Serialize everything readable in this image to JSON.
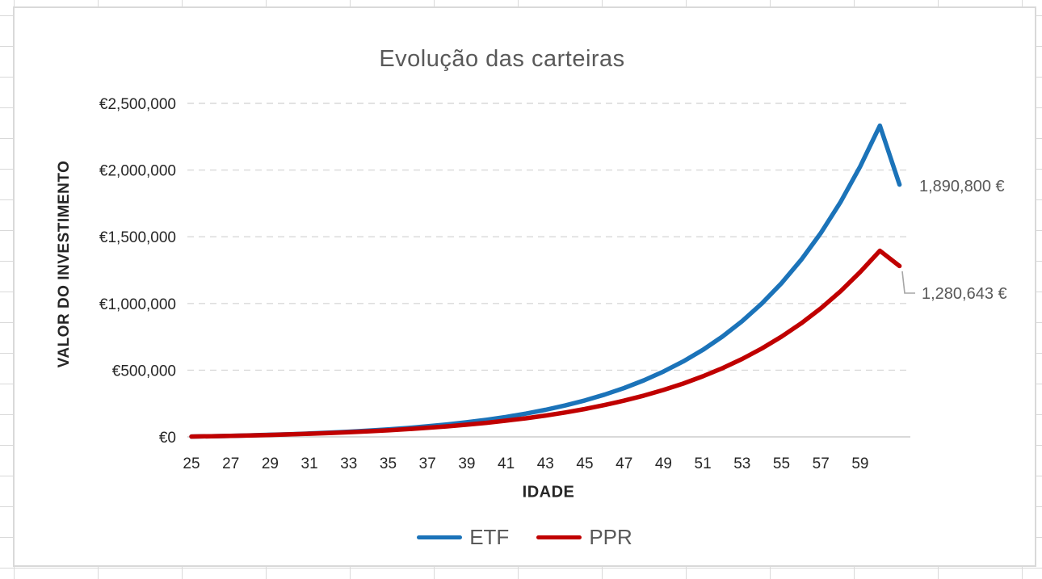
{
  "colors": {
    "etf": "#1B73B9",
    "ppr": "#C00000",
    "title_text": "#595959",
    "tick_text": "#262626",
    "gridline": "#D9D9D9",
    "axis_line": "#D9D9D9",
    "leader_line": "#A6A6A6",
    "data_label_text": "#595959"
  },
  "chart_data": {
    "type": "line",
    "title": "Evolução das carteiras",
    "xlabel": "IDADE",
    "ylabel": "VALOR DO INVESTIMENTO",
    "legend_position": "bottom",
    "grid": "horizontal-dashed",
    "xlim": [
      25,
      61.8
    ],
    "ylim": [
      0,
      2500000
    ],
    "x": [
      25,
      26,
      27,
      28,
      29,
      30,
      31,
      32,
      33,
      34,
      35,
      36,
      37,
      38,
      39,
      40,
      41,
      42,
      43,
      44,
      45,
      46,
      47,
      48,
      49,
      50,
      51,
      52,
      53,
      54,
      55,
      56,
      57,
      58,
      59,
      60,
      61
    ],
    "x_tick_labels": [
      "25",
      "27",
      "29",
      "31",
      "33",
      "35",
      "37",
      "39",
      "41",
      "43",
      "45",
      "47",
      "49",
      "51",
      "53",
      "55",
      "57",
      "59"
    ],
    "x_tick_values": [
      25,
      27,
      29,
      31,
      33,
      35,
      37,
      39,
      41,
      43,
      45,
      47,
      49,
      51,
      53,
      55,
      57,
      59
    ],
    "y_tick_values": [
      0,
      500000,
      1000000,
      1500000,
      2000000,
      2500000
    ],
    "y_tick_labels": [
      "€0",
      "€500,000",
      "€1,000,000",
      "€1,500,000",
      "€2,000,000",
      "€2,500,000"
    ],
    "series": [
      {
        "name": "ETF",
        "color": "#1B73B9",
        "end_label": "1,890,800 €",
        "values": [
          2300,
          4945,
          7987,
          11485,
          15507,
          20133,
          25453,
          31571,
          38607,
          46698,
          56003,
          66703,
          79009,
          93160,
          109434,
          128149,
          149671,
          174422,
          202885,
          235618,
          273260,
          316549,
          366331,
          423580,
          489417,
          565130,
          652199,
          752329,
          867479,
          999901,
          1152186,
          1327314,
          1528712,
          1760318,
          2026666,
          2332966,
          1890800
        ]
      },
      {
        "name": "PPR",
        "color": "#C00000",
        "end_label": "1,280,643 €",
        "values": [
          2260,
          4814,
          7700,
          10961,
          14646,
          18810,
          23516,
          28833,
          34841,
          41631,
          49303,
          57972,
          67769,
          78839,
          91349,
          105484,
          121457,
          139506,
          159902,
          182949,
          208993,
          238422,
          271677,
          309255,
          351722,
          399706,
          453928,
          515199,
          584435,
          662671,
          751078,
          850978,
          963869,
          1091436,
          1235587,
          1395000,
          1280643
        ]
      }
    ]
  }
}
